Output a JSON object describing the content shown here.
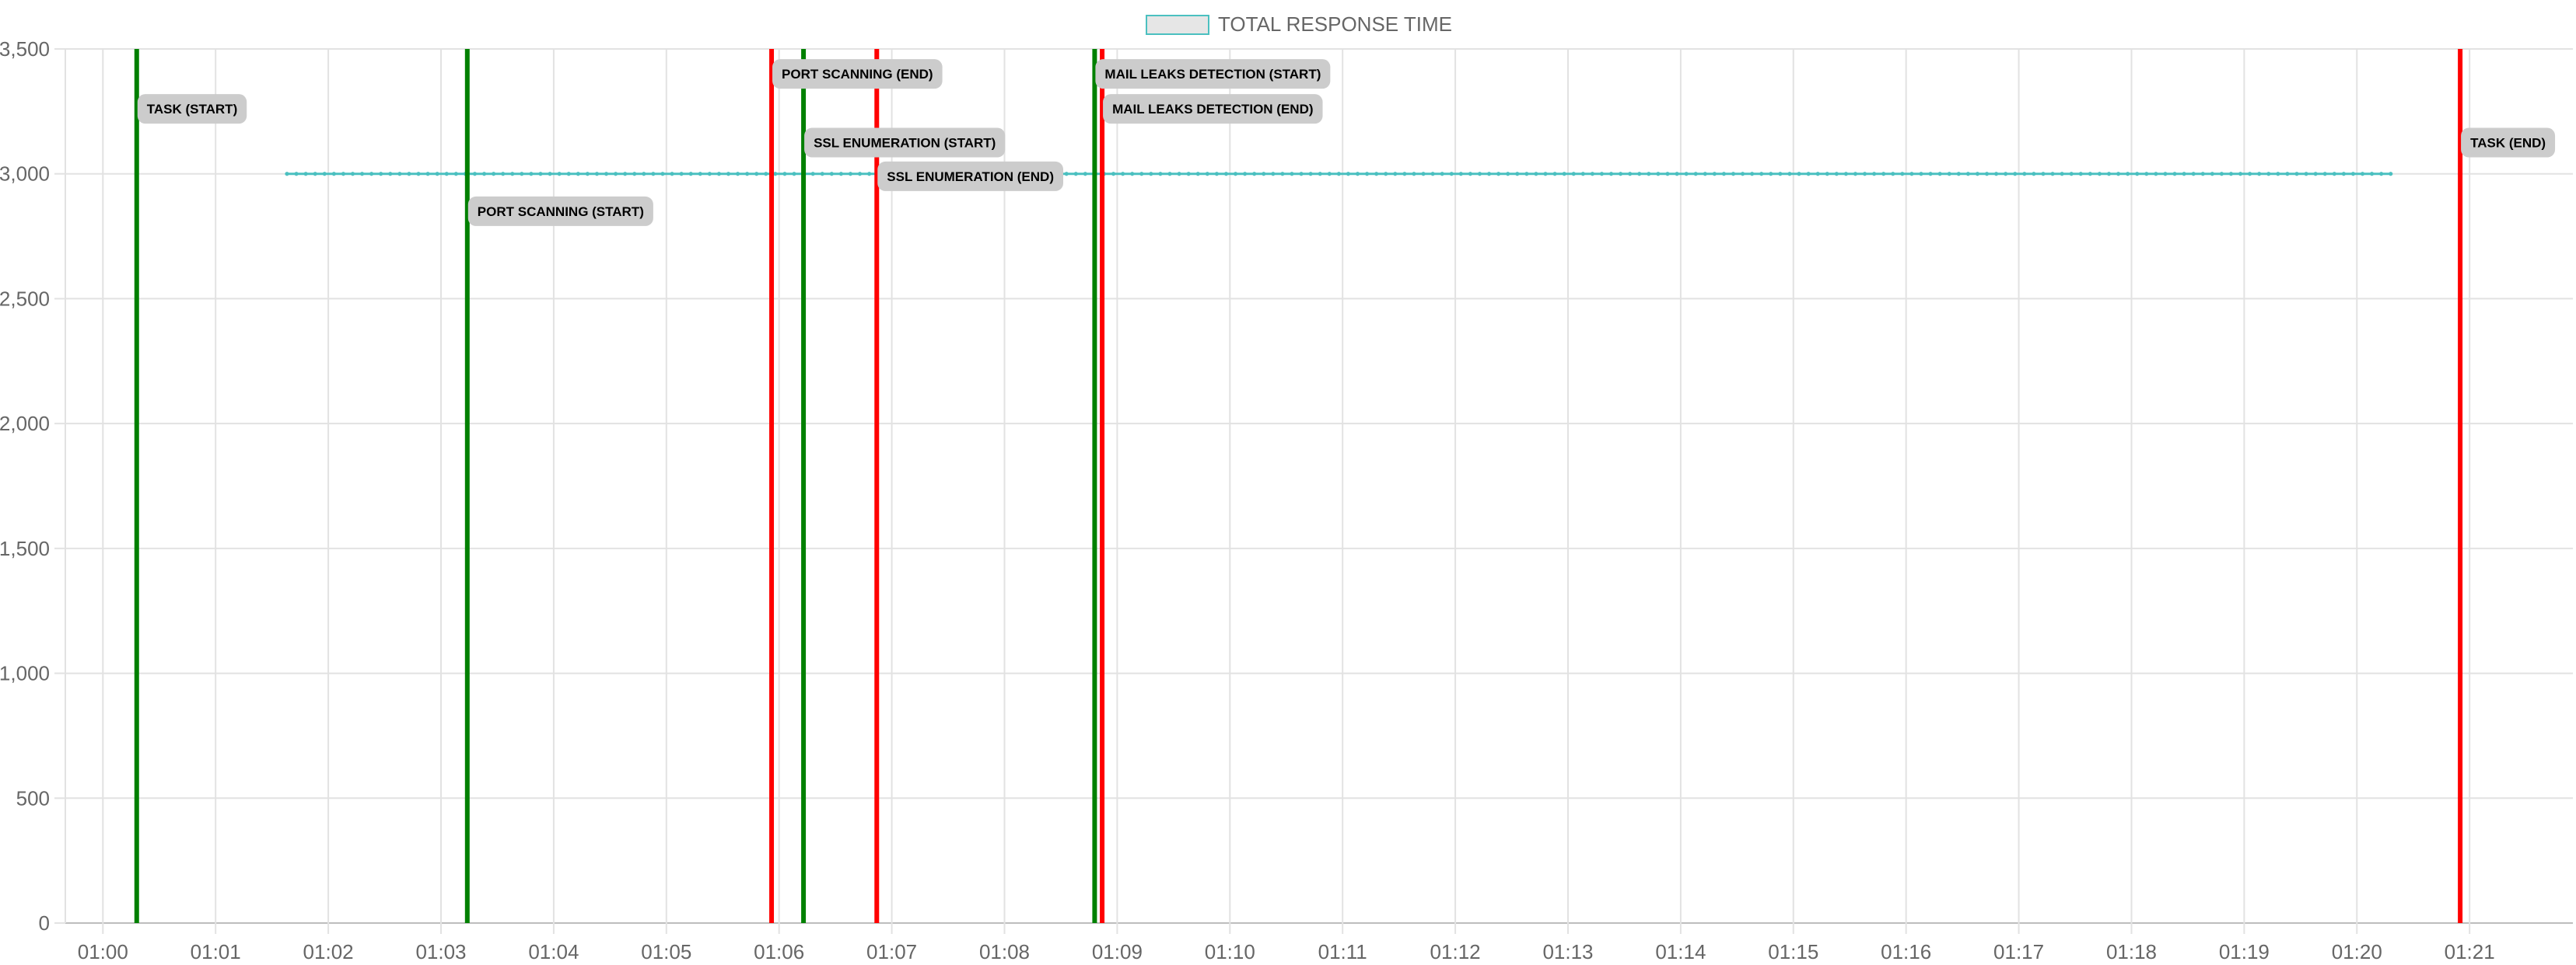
{
  "chart_data": {
    "type": "line",
    "title": "",
    "xlabel": "",
    "ylabel": "",
    "ylim": [
      0,
      3500
    ],
    "y_ticks": [
      0,
      500,
      1000,
      1500,
      2000,
      2500,
      3000,
      3500
    ],
    "y_tick_labels": [
      "0",
      "500",
      "1,000",
      "1,500",
      "2,000",
      "2,500",
      "3,000",
      "3,500"
    ],
    "x_range": [
      "00:59:40",
      "01:21:55"
    ],
    "x_ticks": [
      "01:00",
      "01:01",
      "01:02",
      "01:03",
      "01:04",
      "01:05",
      "01:06",
      "01:07",
      "01:08",
      "01:09",
      "01:10",
      "01:11",
      "01:12",
      "01:13",
      "01:14",
      "01:15",
      "01:16",
      "01:17",
      "01:18",
      "01:19",
      "01:20",
      "01:21"
    ],
    "grid": true,
    "legend_position": "top-center",
    "series": [
      {
        "name": "TOTAL RESPONSE TIME",
        "color": "#4bc0c0",
        "x_start": "01:01:38",
        "x_end": "01:20:22",
        "x_step_seconds": 5,
        "value": 3000
      }
    ],
    "annotations": [
      {
        "label": "TASK (START)",
        "time": "01:00:18",
        "kind": "start",
        "color": "#008000",
        "label_y": 3260
      },
      {
        "label": "PORT SCANNING (START)",
        "time": "01:03:14",
        "kind": "start",
        "color": "#008000",
        "label_y": 2850
      },
      {
        "label": "PORT SCANNING (END)",
        "time": "01:05:56",
        "kind": "end",
        "color": "#ff0000",
        "label_y": 3400
      },
      {
        "label": "SSL ENUMERATION (START)",
        "time": "01:06:13",
        "kind": "start",
        "color": "#008000",
        "label_y": 3125
      },
      {
        "label": "SSL ENUMERATION (END)",
        "time": "01:06:52",
        "kind": "end",
        "color": "#ff0000",
        "label_y": 2990
      },
      {
        "label": "MAIL LEAKS DETECTION (START)",
        "time": "01:08:48",
        "kind": "start",
        "color": "#008000",
        "label_y": 3400
      },
      {
        "label": "MAIL LEAKS DETECTION (END)",
        "time": "01:08:52",
        "kind": "end",
        "color": "#ff0000",
        "label_y": 3260
      },
      {
        "label": "TASK (END)",
        "time": "01:20:55",
        "kind": "end",
        "color": "#ff0000",
        "label_y": 3125
      }
    ]
  }
}
